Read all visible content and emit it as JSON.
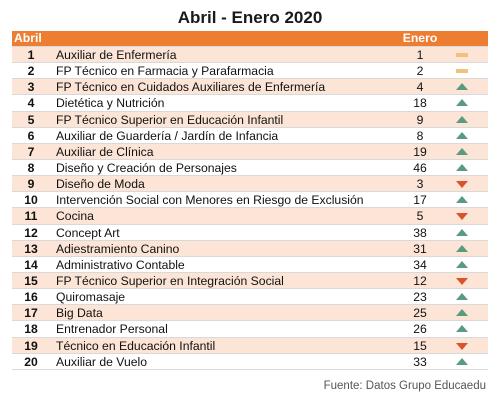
{
  "title": "Abril - Enero 2020",
  "header": {
    "rank": "Abril",
    "name": "",
    "value": "Enero"
  },
  "rows": [
    {
      "rank": "1",
      "name": "Auxiliar de Enfermería",
      "value": "1",
      "trend": "flat"
    },
    {
      "rank": "2",
      "name": "FP Técnico en Farmacia y Parafarmacia",
      "value": "2",
      "trend": "flat"
    },
    {
      "rank": "3",
      "name": "FP Técnico en Cuidados Auxiliares de Enfermería",
      "value": "4",
      "trend": "up"
    },
    {
      "rank": "4",
      "name": "Dietética y Nutrición",
      "value": "18",
      "trend": "up"
    },
    {
      "rank": "5",
      "name": "FP Técnico Superior en Educación Infantil",
      "value": "9",
      "trend": "up"
    },
    {
      "rank": "6",
      "name": "Auxiliar de Guardería / Jardín de Infancia",
      "value": "8",
      "trend": "up"
    },
    {
      "rank": "7",
      "name": "Auxiliar de Clínica",
      "value": "19",
      "trend": "up"
    },
    {
      "rank": "8",
      "name": "Diseño y Creación de Personajes",
      "value": "46",
      "trend": "up"
    },
    {
      "rank": "9",
      "name": "Diseño de Moda",
      "value": "3",
      "trend": "down"
    },
    {
      "rank": "10",
      "name": "Intervención Social con Menores en Riesgo de Exclusión",
      "value": "17",
      "trend": "up"
    },
    {
      "rank": "11",
      "name": "Cocina",
      "value": "5",
      "trend": "down"
    },
    {
      "rank": "12",
      "name": "Concept Art",
      "value": "38",
      "trend": "up"
    },
    {
      "rank": "13",
      "name": "Adiestramiento Canino",
      "value": "31",
      "trend": "up"
    },
    {
      "rank": "14",
      "name": "Administrativo Contable",
      "value": "34",
      "trend": "up"
    },
    {
      "rank": "15",
      "name": "FP Técnico Superior en Integración Social",
      "value": "12",
      "trend": "down"
    },
    {
      "rank": "16",
      "name": "Quiromasaje",
      "value": "23",
      "trend": "up"
    },
    {
      "rank": "17",
      "name": "Big Data",
      "value": "25",
      "trend": "up"
    },
    {
      "rank": "18",
      "name": "Entrenador Personal",
      "value": "26",
      "trend": "up"
    },
    {
      "rank": "19",
      "name": "Técnico en Educación Infantil",
      "value": "15",
      "trend": "down"
    },
    {
      "rank": "20",
      "name": "Auxiliar de Vuelo",
      "value": "33",
      "trend": "up"
    }
  ],
  "source": "Fuente: Datos Grupo Educaedu",
  "colors": {
    "header": "#ed7d31",
    "alt_row": "#fce4d6",
    "up": "#5a9a7e",
    "down": "#d9542b",
    "flat": "#f2c27a"
  },
  "icons": {
    "up": "triangle-up-icon",
    "down": "triangle-down-icon",
    "flat": "dash-icon"
  }
}
